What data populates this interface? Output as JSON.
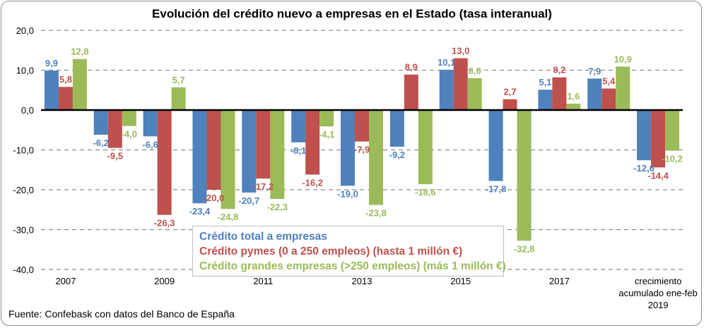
{
  "chart_data": {
    "type": "bar",
    "title": "Evolución del crédito nuevo a empresas en el Estado (tasa interanual)",
    "xlabel": "",
    "ylabel": "",
    "ylim": [
      -40,
      20
    ],
    "yticks": [
      20,
      10,
      0,
      -10,
      -20,
      -30,
      -40
    ],
    "ytick_labels": [
      "20,0",
      "10,0",
      "0,0",
      "-10,0",
      "-20,0",
      "-30,0",
      "-40,0"
    ],
    "grid": true,
    "categories": [
      "2007",
      "2008",
      "2009",
      "2010",
      "2011",
      "2012",
      "2013",
      "2014",
      "2015",
      "2016",
      "2017",
      "2018",
      "crecimiento acumulado ene-feb 2019"
    ],
    "xtick_labels": [
      {
        "index": 0,
        "lines": [
          "2007"
        ]
      },
      {
        "index": 2,
        "lines": [
          "2009"
        ]
      },
      {
        "index": 4,
        "lines": [
          "2011"
        ]
      },
      {
        "index": 6,
        "lines": [
          "2013"
        ]
      },
      {
        "index": 8,
        "lines": [
          "2015"
        ]
      },
      {
        "index": 10,
        "lines": [
          "2017"
        ]
      },
      {
        "index": 12,
        "lines": [
          "crecimiento",
          "acumulado ene-feb",
          "2019"
        ]
      }
    ],
    "series": [
      {
        "name": "Crédito total a empresas",
        "color": "#4F81BD",
        "values": [
          9.9,
          -6.2,
          -6.6,
          -23.4,
          -20.7,
          -8.1,
          -19.0,
          -9.2,
          10.1,
          -17.8,
          5.1,
          7.9,
          -12.6
        ],
        "labels": [
          "9,9",
          "-6,2",
          "-6,6",
          "-23,4",
          "-20,7",
          "-8,1",
          "-19,0",
          "-9,2",
          "10,1",
          "-17,8",
          "5,1",
          "7,9",
          "-12,6"
        ]
      },
      {
        "name": "Crédito pymes (0 a 250 empleos) (hasta 1 millón €)",
        "color": "#C0504D",
        "values": [
          5.8,
          -9.5,
          -26.3,
          -20.0,
          -17.2,
          -16.2,
          -7.9,
          8.9,
          13.0,
          2.7,
          8.2,
          5.4,
          -14.4
        ],
        "labels": [
          "5,8",
          "-9,5",
          "-26,3",
          "-20,0",
          "-17,2",
          "-16,2",
          "-7,9",
          "8,9",
          "13,0",
          "2,7",
          "8,2",
          "5,4",
          "-14,4"
        ]
      },
      {
        "name": "Crédito grandes empresas (>250 empleos) (más 1 millón €)",
        "color": "#9BBB59",
        "values": [
          12.8,
          -4.0,
          5.7,
          -24.8,
          -22.3,
          -4.1,
          -23.8,
          -18.6,
          8.0,
          -32.8,
          1.6,
          10.9,
          -10.2
        ],
        "labels": [
          "12,8",
          "-4,0",
          "5,7",
          "-24,8",
          "-22,3",
          "-4,1",
          "-23,8",
          "-18,6",
          "8,0",
          "-32,8",
          "1,6",
          "10,9",
          "-10,2"
        ]
      }
    ],
    "legend_position": "bottom-center",
    "source": "Fuente: Confebask con datos del Banco de España"
  }
}
